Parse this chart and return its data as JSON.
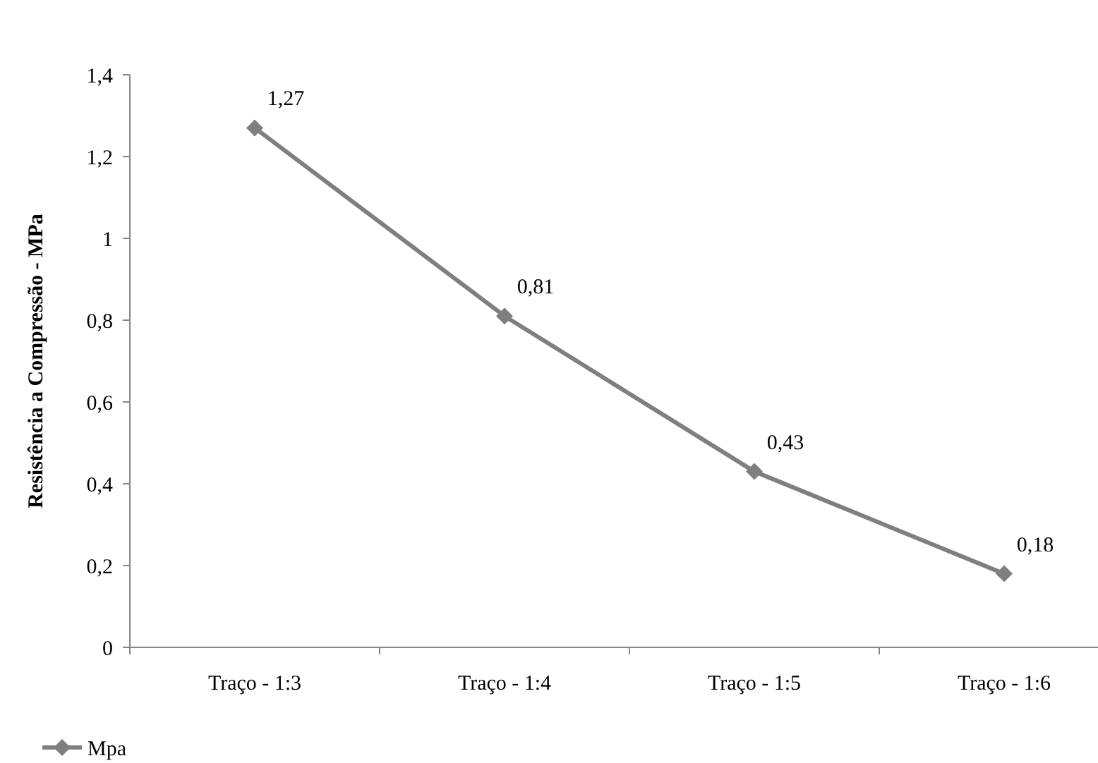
{
  "chart_data": {
    "type": "line",
    "ylabel": "Resistência a Compressão - MPa",
    "categories": [
      "Traço - 1:3",
      "Traço - 1:4",
      "Traço - 1:5",
      "Traço - 1:6"
    ],
    "series": [
      {
        "name": "Mpa",
        "color": "#7f7f7f",
        "values": [
          1.27,
          0.81,
          0.43,
          0.18
        ],
        "value_labels": [
          "1,27",
          "0,81",
          "0,43",
          "0,18"
        ]
      }
    ],
    "ylim": [
      0,
      1.4
    ],
    "yticks": [
      {
        "value": 0,
        "label": "0"
      },
      {
        "value": 0.2,
        "label": "0,2"
      },
      {
        "value": 0.4,
        "label": "0,4"
      },
      {
        "value": 0.6,
        "label": "0,6"
      },
      {
        "value": 0.8,
        "label": "0,8"
      },
      {
        "value": 1,
        "label": "1"
      },
      {
        "value": 1.2,
        "label": "1,2"
      },
      {
        "value": 1.4,
        "label": "1,4"
      }
    ],
    "marker": "diamond",
    "line_style": "solid",
    "legend": "bottom left",
    "grid": false
  }
}
